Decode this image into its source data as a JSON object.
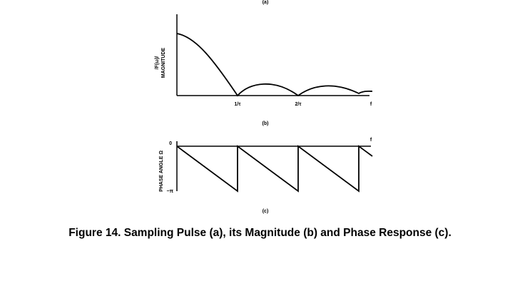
{
  "figure": {
    "panel_a_label": "(a)",
    "panel_b_label": "(b)",
    "panel_c_label": "(c)",
    "caption": "Figure 14. Sampling Pulse (a), its Magnitude (b) and Phase Response (c)."
  },
  "magnitude_plot": {
    "ylabel_line1": "/F(ω)/",
    "ylabel_line2": "MAGNITUDE",
    "tick_1": "1/τ",
    "tick_2": "2/τ",
    "axis_end_label": "f"
  },
  "phase_plot": {
    "ylabel": "PHASE ANGLE Ω",
    "zero_label": "0",
    "neg_pi_label": "−π",
    "axis_end_label": "f"
  },
  "colors": {
    "ink": "#000000",
    "background": "#ffffff"
  }
}
